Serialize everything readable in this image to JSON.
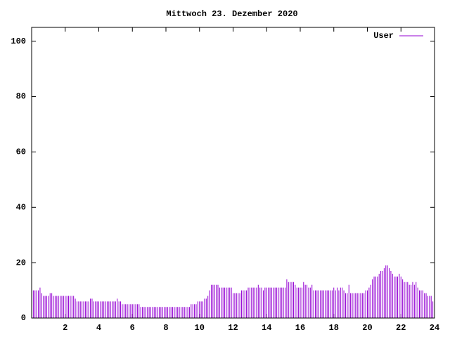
{
  "chart_data": {
    "type": "impulses",
    "title": "Mittwoch 23. Dezember 2020",
    "x": [
      0,
      0.1,
      0.2,
      0.3,
      0.4,
      0.5,
      0.6,
      0.7,
      0.8,
      0.9,
      1,
      1.1,
      1.2,
      1.3,
      1.4,
      1.5,
      1.6,
      1.7,
      1.8,
      1.9,
      2,
      2.1,
      2.2,
      2.3,
      2.4,
      2.5,
      2.6,
      2.7,
      2.8,
      2.9,
      3,
      3.1,
      3.2,
      3.3,
      3.4,
      3.5,
      3.6,
      3.7,
      3.8,
      3.9,
      4,
      4.1,
      4.2,
      4.3,
      4.4,
      4.5,
      4.6,
      4.7,
      4.8,
      4.9,
      5,
      5.1,
      5.2,
      5.3,
      5.4,
      5.5,
      5.6,
      5.7,
      5.8,
      5.9,
      6,
      6.1,
      6.2,
      6.3,
      6.4,
      6.5,
      6.6,
      6.7,
      6.8,
      6.9,
      7,
      7.1,
      7.2,
      7.3,
      7.4,
      7.5,
      7.6,
      7.7,
      7.8,
      7.9,
      8,
      8.1,
      8.2,
      8.3,
      8.4,
      8.5,
      8.6,
      8.7,
      8.8,
      8.9,
      9,
      9.1,
      9.2,
      9.3,
      9.4,
      9.5,
      9.6,
      9.7,
      9.8,
      9.9,
      10,
      10.1,
      10.2,
      10.3,
      10.4,
      10.5,
      10.6,
      10.7,
      10.8,
      10.9,
      11,
      11.1,
      11.2,
      11.3,
      11.4,
      11.5,
      11.6,
      11.7,
      11.8,
      11.9,
      12,
      12.1,
      12.2,
      12.3,
      12.4,
      12.5,
      12.6,
      12.7,
      12.8,
      12.9,
      13,
      13.1,
      13.2,
      13.3,
      13.4,
      13.5,
      13.6,
      13.7,
      13.8,
      13.9,
      14,
      14.1,
      14.2,
      14.3,
      14.4,
      14.5,
      14.6,
      14.7,
      14.8,
      14.9,
      15,
      15.1,
      15.2,
      15.3,
      15.4,
      15.5,
      15.6,
      15.7,
      15.8,
      15.9,
      16,
      16.1,
      16.2,
      16.3,
      16.4,
      16.5,
      16.6,
      16.7,
      16.8,
      16.9,
      17,
      17.1,
      17.2,
      17.3,
      17.4,
      17.5,
      17.6,
      17.7,
      17.8,
      17.9,
      18,
      18.1,
      18.2,
      18.3,
      18.4,
      18.5,
      18.6,
      18.7,
      18.8,
      18.9,
      19,
      19.1,
      19.2,
      19.3,
      19.4,
      19.5,
      19.6,
      19.7,
      19.8,
      19.9,
      20,
      20.1,
      20.2,
      20.3,
      20.4,
      20.5,
      20.6,
      20.7,
      20.8,
      20.9,
      21,
      21.1,
      21.2,
      21.3,
      21.4,
      21.5,
      21.6,
      21.7,
      21.8,
      21.9,
      22,
      22.1,
      22.2,
      22.3,
      22.4,
      22.5,
      22.6,
      22.7,
      22.8,
      22.9,
      23,
      23.1,
      23.2,
      23.3,
      23.4,
      23.5,
      23.6,
      23.7,
      23.8,
      23.9
    ],
    "series": [
      {
        "name": "User",
        "color": "#9400d3",
        "values": [
          10,
          10,
          10,
          10,
          10,
          11,
          9,
          8,
          8,
          8,
          8,
          9,
          9,
          8,
          8,
          8,
          8,
          8,
          8,
          8,
          8,
          8,
          8,
          8,
          8,
          8,
          7,
          6,
          6,
          6,
          6,
          6,
          6,
          6,
          6,
          7,
          7,
          6,
          6,
          6,
          6,
          6,
          6,
          6,
          6,
          6,
          6,
          6,
          6,
          6,
          6,
          7,
          6,
          6,
          5,
          5,
          5,
          5,
          5,
          5,
          5,
          5,
          5,
          5,
          5,
          4,
          4,
          4,
          4,
          4,
          4,
          4,
          4,
          4,
          4,
          4,
          4,
          4,
          4,
          4,
          4,
          4,
          4,
          4,
          4,
          4,
          4,
          4,
          4,
          4,
          4,
          4,
          4,
          4,
          4,
          5,
          5,
          5,
          5,
          6,
          6,
          6,
          6,
          7,
          7,
          8,
          10,
          12,
          12,
          12,
          12,
          12,
          11,
          11,
          11,
          11,
          11,
          11,
          11,
          11,
          9,
          9,
          9,
          9,
          9,
          10,
          10,
          10,
          10,
          11,
          11,
          11,
          11,
          11,
          11,
          12,
          11,
          11,
          10,
          11,
          11,
          11,
          11,
          11,
          11,
          11,
          11,
          11,
          11,
          11,
          11,
          11,
          14,
          13,
          13,
          13,
          13,
          12,
          11,
          11,
          11,
          11,
          13,
          12,
          12,
          11,
          11,
          12,
          10,
          10,
          10,
          10,
          10,
          10,
          10,
          10,
          10,
          10,
          10,
          10,
          11,
          10,
          11,
          10,
          11,
          11,
          10,
          9,
          9,
          12,
          9,
          9,
          9,
          9,
          9,
          9,
          9,
          9,
          9,
          10,
          10,
          11,
          12,
          14,
          15,
          15,
          15,
          16,
          17,
          17,
          18,
          19,
          19,
          18,
          17,
          16,
          15,
          15,
          15,
          16,
          15,
          14,
          13,
          13,
          13,
          12,
          12,
          13,
          12,
          13,
          11,
          10,
          10,
          10,
          9,
          9,
          8,
          8,
          8,
          6
        ]
      }
    ],
    "xlim": [
      0,
      24
    ],
    "xticks": [
      2,
      4,
      6,
      8,
      10,
      12,
      14,
      16,
      18,
      20,
      22,
      24
    ],
    "ylim": [
      0,
      105
    ],
    "yticks": [
      0,
      20,
      40,
      60,
      80,
      100
    ],
    "legend": "top-right"
  }
}
